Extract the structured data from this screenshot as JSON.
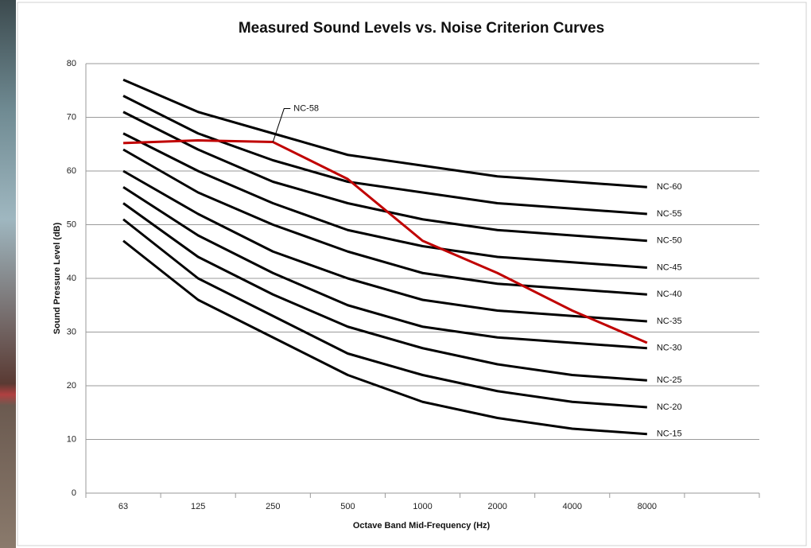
{
  "chart_data": {
    "type": "line",
    "title": "Measured Sound Levels vs. Noise Criterion Curves",
    "x_label": "Octave Band Mid-Frequency (Hz)",
    "y_label": "Sound Pressure Level (dB)",
    "categories": [
      "63",
      "125",
      "250",
      "500",
      "1000",
      "2000",
      "4000",
      "8000",
      null
    ],
    "ylim": [
      0,
      80
    ],
    "yticks": [
      0,
      10,
      20,
      30,
      40,
      50,
      60,
      70,
      80
    ],
    "grid": true,
    "series": [
      {
        "name": "NC-60",
        "color": "#000000",
        "values": [
          77,
          71,
          67,
          63,
          61,
          59,
          58,
          57,
          null
        ]
      },
      {
        "name": "NC-55",
        "color": "#000000",
        "values": [
          74,
          67,
          62,
          58,
          56,
          54,
          53,
          52,
          null
        ]
      },
      {
        "name": "NC-50",
        "color": "#000000",
        "values": [
          71,
          64,
          58,
          54,
          51,
          49,
          48,
          47,
          null
        ]
      },
      {
        "name": "NC-45",
        "color": "#000000",
        "values": [
          67,
          60,
          54,
          49,
          46,
          44,
          43,
          42,
          null
        ]
      },
      {
        "name": "NC-40",
        "color": "#000000",
        "values": [
          64,
          56,
          50,
          45,
          41,
          39,
          38,
          37,
          null
        ]
      },
      {
        "name": "NC-35",
        "color": "#000000",
        "values": [
          60,
          52,
          45,
          40,
          36,
          34,
          33,
          32,
          null
        ]
      },
      {
        "name": "NC-30",
        "color": "#000000",
        "values": [
          57,
          48,
          41,
          35,
          31,
          29,
          28,
          27,
          null
        ]
      },
      {
        "name": "NC-25",
        "color": "#000000",
        "values": [
          54,
          44,
          37,
          31,
          27,
          24,
          22,
          21,
          null
        ]
      },
      {
        "name": "NC-20",
        "color": "#000000",
        "values": [
          51,
          40,
          33,
          26,
          22,
          19,
          17,
          16,
          null
        ]
      },
      {
        "name": "NC-15",
        "color": "#000000",
        "values": [
          47,
          36,
          29,
          22,
          17,
          14,
          12,
          11,
          null
        ]
      },
      {
        "name": "NC-58",
        "color": "#c00000",
        "values": [
          65.2,
          65.7,
          65.4,
          58.5,
          47,
          41,
          34,
          28,
          null
        ]
      }
    ]
  }
}
